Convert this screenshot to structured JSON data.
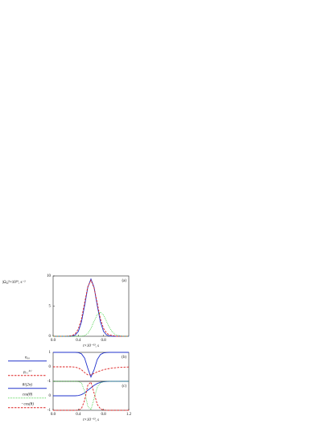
{
  "chart_data": [
    {
      "type": "line",
      "ylabel": "|Ω₀|²×10²⁹, s⁻²",
      "xlabel": "t×10⁻¹³, s",
      "panel_label": "(a)",
      "x": [
        0,
        0.05,
        0.1,
        0.15,
        0.2,
        0.25,
        0.3,
        0.35,
        0.4,
        0.45,
        0.5,
        0.55,
        0.6,
        0.65,
        0.7,
        0.75,
        0.8,
        0.85,
        0.9,
        0.95,
        1.0,
        1.05,
        1.1,
        1.15,
        1.2
      ],
      "xlim": [
        0,
        1.2
      ],
      "xticks": [
        {
          "value": 0,
          "label": "0.0"
        },
        0.4,
        0.8
      ],
      "ylim": [
        0,
        10
      ],
      "yticks": [
        0,
        5,
        10
      ],
      "series": [
        {
          "color": "#2233cc",
          "style": "solid",
          "values": [
            0,
            0,
            0,
            0,
            0,
            0,
            0.04,
            0.2,
            0.8,
            2.4,
            5.1,
            8.1,
            9.5,
            8.1,
            5.1,
            2.4,
            0.8,
            0.2,
            0.04,
            0,
            0,
            0,
            0,
            0,
            0
          ]
        },
        {
          "color": "#dd2222",
          "style": "dashed",
          "values": [
            0,
            0,
            0,
            0,
            0,
            0.05,
            0.1,
            0.4,
            1.2,
            2.9,
            5.6,
            8.2,
            9.3,
            8.0,
            5.5,
            2.9,
            1.3,
            0.5,
            0.2,
            0.1,
            0,
            0,
            0,
            0,
            0
          ]
        },
        {
          "color": "#33cc33",
          "style": "dotted",
          "values": [
            0,
            0,
            0,
            0,
            0,
            0,
            0,
            0,
            0,
            0,
            0.1,
            0.5,
            1.3,
            2.5,
            3.6,
            4.0,
            3.5,
            2.4,
            1.3,
            0.6,
            0.2,
            0.1,
            0,
            0,
            0
          ]
        }
      ]
    },
    {
      "type": "line",
      "panel_label": "(b)",
      "x": [
        0,
        0.05,
        0.1,
        0.15,
        0.2,
        0.25,
        0.3,
        0.35,
        0.4,
        0.45,
        0.5,
        0.55,
        0.6,
        0.65,
        0.7,
        0.75,
        0.8,
        0.85,
        0.9,
        0.95,
        1.0,
        1.05,
        1.1,
        1.15,
        1.2
      ],
      "xlim": [
        0,
        1.2
      ],
      "ylim": [
        -1,
        1
      ],
      "yticks": [
        -1,
        0,
        1
      ],
      "series": [
        {
          "name": "n₀₀",
          "color": "#2233cc",
          "style": "solid",
          "values": [
            1,
            1,
            1,
            1,
            1,
            1,
            1,
            1,
            0.98,
            0.9,
            0.6,
            -0.1,
            -0.7,
            -0.2,
            0.5,
            0.85,
            0.96,
            0.99,
            1,
            1,
            1,
            1,
            1,
            1,
            1
          ]
        },
        {
          "name": "ρ₀₁⁽¹⁾",
          "color": "#dd2222",
          "style": "dashed",
          "values": [
            0,
            0,
            0,
            0,
            0,
            0,
            0,
            -0.02,
            -0.08,
            -0.2,
            -0.4,
            -0.55,
            -0.55,
            -0.45,
            -0.35,
            -0.27,
            -0.2,
            -0.15,
            -0.11,
            -0.08,
            -0.06,
            -0.04,
            -0.03,
            -0.02,
            -0.01
          ]
        }
      ]
    },
    {
      "type": "line",
      "panel_label": "(c)",
      "xlabel": "t×10⁻¹³, s",
      "x": [
        0,
        0.05,
        0.1,
        0.15,
        0.2,
        0.25,
        0.3,
        0.35,
        0.4,
        0.45,
        0.5,
        0.55,
        0.6,
        0.65,
        0.7,
        0.75,
        0.8,
        0.85,
        0.9,
        0.95,
        1.0,
        1.05,
        1.1,
        1.15,
        1.2
      ],
      "xlim": [
        0,
        1.2
      ],
      "xticks": [
        {
          "value": 0,
          "label": "0.0"
        },
        0.4,
        0.8,
        1.2
      ],
      "ylim": [
        -1,
        1
      ],
      "yticks": [
        -1,
        0,
        1
      ],
      "series": [
        {
          "name": "θ/(2π)",
          "color": "#2233cc",
          "style": "solid",
          "values": [
            0,
            0,
            0,
            0,
            0,
            0,
            0,
            0,
            0.02,
            0.08,
            0.2,
            0.38,
            0.55,
            0.72,
            0.85,
            0.93,
            0.97,
            0.99,
            1,
            1,
            1,
            1,
            1,
            1,
            1
          ]
        },
        {
          "name": "cos(θ)",
          "color": "#33cc33",
          "style": "dotted",
          "values": [
            1,
            1,
            1,
            1,
            1,
            1,
            1,
            1,
            0.99,
            0.88,
            0.31,
            -0.73,
            -0.95,
            -0.19,
            0.59,
            0.9,
            0.98,
            1,
            1,
            1,
            1,
            1,
            1,
            1,
            1
          ]
        },
        {
          "name": "−cos(θ)",
          "color": "#dd2222",
          "style": "dashed",
          "values": [
            -1,
            -1,
            -1,
            -1,
            -1,
            -1,
            -1,
            -1,
            -0.99,
            -0.88,
            -0.31,
            0.73,
            0.95,
            0.19,
            -0.59,
            -0.9,
            -0.98,
            -1,
            -1,
            -1,
            -1,
            -1,
            -1,
            -1,
            -1
          ]
        }
      ]
    }
  ]
}
